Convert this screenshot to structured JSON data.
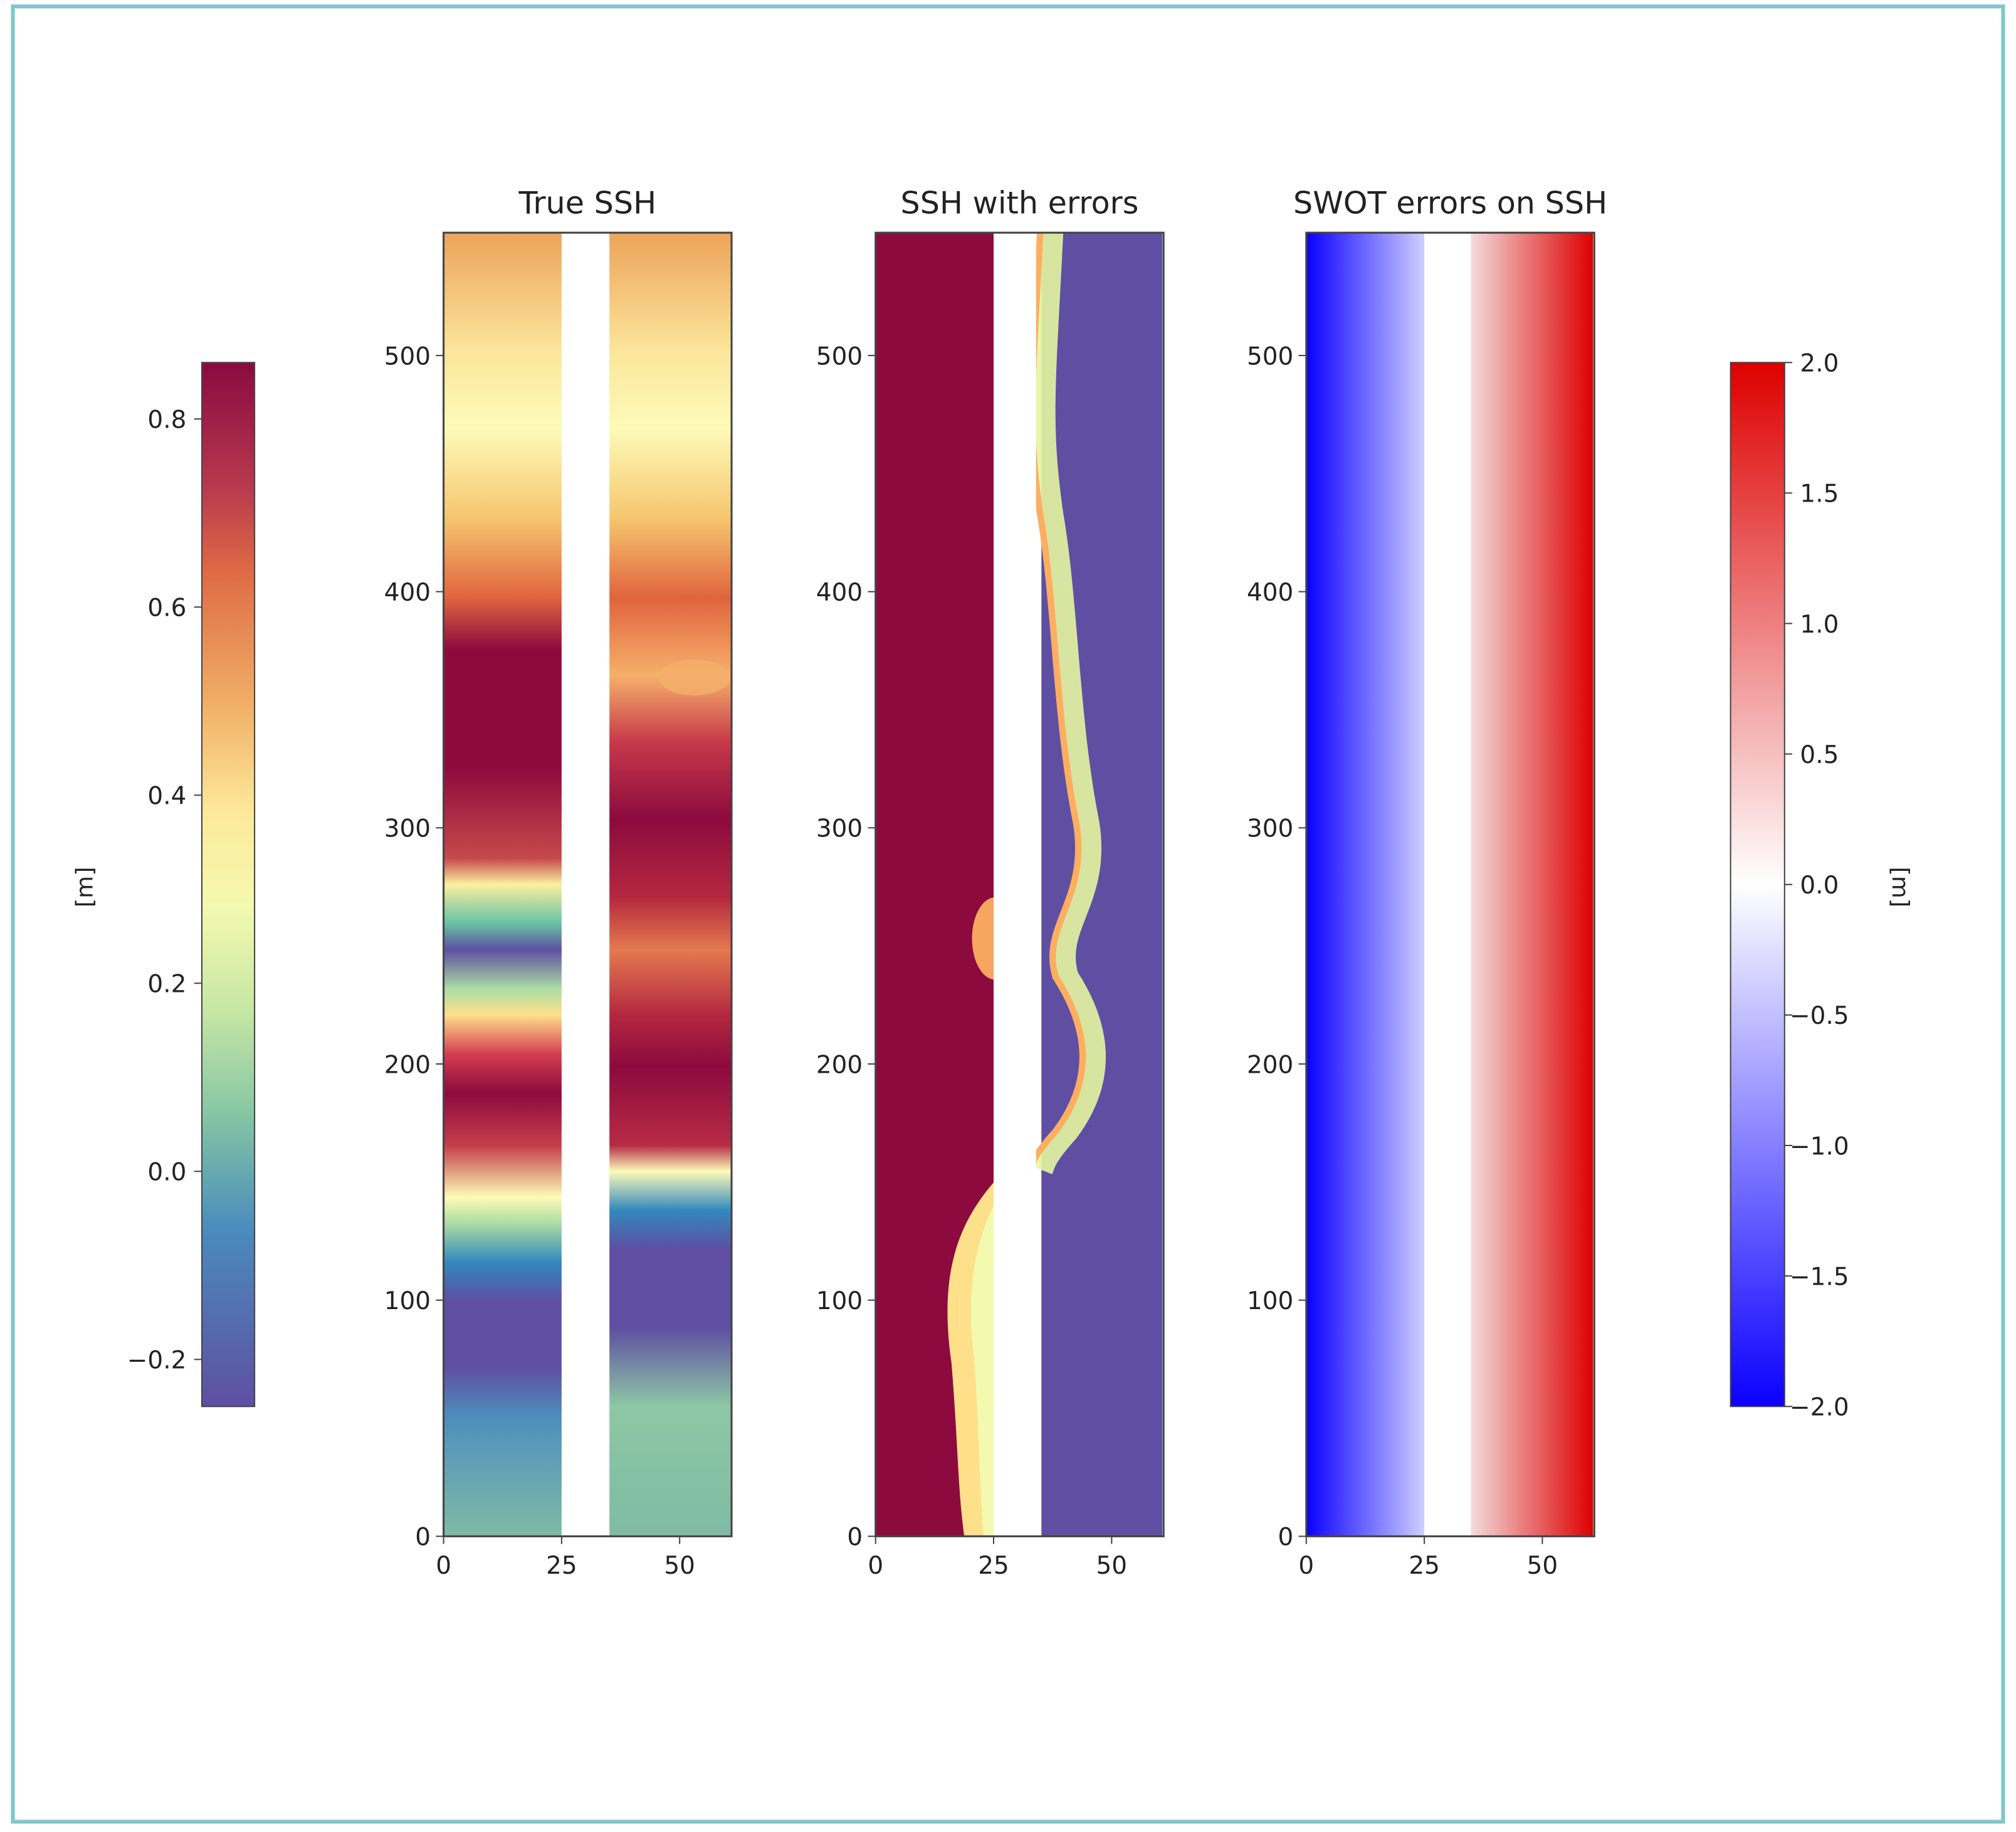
{
  "chart_data": {
    "type": "heatmap",
    "panels": [
      {
        "title": "True SSH",
        "colormap": "Spectral_r",
        "xlim": [
          0,
          61
        ],
        "ylim": [
          0,
          552
        ],
        "xticks": [
          0,
          25,
          50
        ],
        "yticks": [
          0,
          100,
          200,
          300,
          400,
          500
        ],
        "nadir_gap_x": [
          25,
          34
        ]
      },
      {
        "title": "SSH with errors",
        "colormap": "Spectral_r",
        "xlim": [
          0,
          61
        ],
        "ylim": [
          0,
          552
        ],
        "xticks": [
          0,
          25,
          50
        ],
        "yticks": [
          0,
          100,
          200,
          300,
          400,
          500
        ],
        "nadir_gap_x": [
          25,
          34
        ]
      },
      {
        "title": "SWOT errors on SSH",
        "colormap": "bwr",
        "xlim": [
          0,
          61
        ],
        "ylim": [
          0,
          552
        ],
        "xticks": [
          0,
          25,
          50
        ],
        "yticks": [
          0,
          100,
          200,
          300,
          400,
          500
        ],
        "nadir_gap_x": [
          25,
          34
        ]
      }
    ],
    "colorbars": [
      {
        "label": "[m]",
        "position": "left",
        "range": [
          -0.25,
          0.86
        ],
        "ticks": [
          -0.2,
          0.0,
          0.2,
          0.4,
          0.6,
          0.8
        ],
        "tick_labels": [
          "−0.2",
          "0.0",
          "0.2",
          "0.4",
          "0.6",
          "0.8"
        ]
      },
      {
        "label": "[m]",
        "position": "right",
        "range": [
          -2.0,
          2.0
        ],
        "ticks": [
          -2.0,
          -1.5,
          -1.0,
          -0.5,
          0.0,
          0.5,
          1.0,
          1.5,
          2.0
        ],
        "tick_labels": [
          "−2.0",
          "−1.5",
          "−1.0",
          "−0.5",
          "0.0",
          "0.5",
          "1.0",
          "1.5",
          "2.0"
        ]
      }
    ]
  },
  "colors": {
    "frame": "#7fc7cc",
    "axis": "#444444"
  }
}
